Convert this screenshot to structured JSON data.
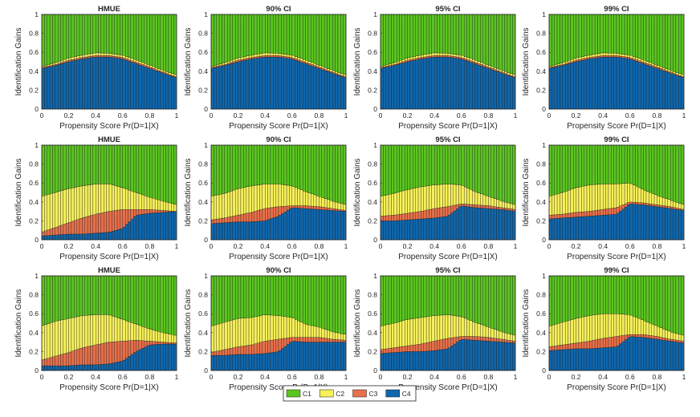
{
  "legend": {
    "position": "bottom-center",
    "items": [
      {
        "label": "C1",
        "color": "#5bc520"
      },
      {
        "label": "C2",
        "color": "#f6f05a"
      },
      {
        "label": "C3",
        "color": "#e8704b"
      },
      {
        "label": "C4",
        "color": "#0f67ad"
      }
    ]
  },
  "chart_data": [
    {
      "type": "area",
      "stacked": true,
      "title": "HMUE",
      "xlabel": "Propensity Score Pr(D=1|X)",
      "ylabel": "Identification Gains",
      "xlim": [
        0,
        1
      ],
      "ylim": [
        0,
        1
      ],
      "x": [
        0,
        0.1,
        0.2,
        0.3,
        0.4,
        0.5,
        0.6,
        0.7,
        0.8,
        0.9,
        1
      ],
      "series": [
        {
          "name": "C4",
          "values": [
            0.43,
            0.46,
            0.5,
            0.53,
            0.55,
            0.55,
            0.53,
            0.48,
            0.43,
            0.38,
            0.33
          ]
        },
        {
          "name": "C3",
          "values": [
            0.01,
            0.01,
            0.015,
            0.015,
            0.015,
            0.015,
            0.015,
            0.015,
            0.015,
            0.01,
            0.01
          ]
        },
        {
          "name": "C2",
          "values": [
            0.01,
            0.02,
            0.025,
            0.025,
            0.03,
            0.025,
            0.025,
            0.025,
            0.02,
            0.02,
            0.02
          ]
        },
        {
          "name": "C1",
          "values": [
            0.55,
            0.51,
            0.46,
            0.43,
            0.405,
            0.41,
            0.43,
            0.48,
            0.535,
            0.59,
            0.64
          ]
        }
      ]
    },
    {
      "type": "area",
      "stacked": true,
      "title": "90% CI",
      "xlabel": "Propensity Score Pr(D=1|X)",
      "ylabel": "Identification Gains",
      "xlim": [
        0,
        1
      ],
      "ylim": [
        0,
        1
      ],
      "x": [
        0,
        0.1,
        0.2,
        0.3,
        0.4,
        0.5,
        0.6,
        0.7,
        0.8,
        0.9,
        1
      ],
      "series": [
        {
          "name": "C4",
          "values": [
            0.43,
            0.46,
            0.5,
            0.53,
            0.55,
            0.55,
            0.53,
            0.48,
            0.43,
            0.38,
            0.33
          ]
        },
        {
          "name": "C3",
          "values": [
            0.01,
            0.01,
            0.015,
            0.015,
            0.015,
            0.015,
            0.015,
            0.015,
            0.015,
            0.01,
            0.01
          ]
        },
        {
          "name": "C2",
          "values": [
            0.01,
            0.02,
            0.025,
            0.025,
            0.03,
            0.025,
            0.025,
            0.025,
            0.02,
            0.02,
            0.02
          ]
        },
        {
          "name": "C1",
          "values": [
            0.55,
            0.51,
            0.46,
            0.43,
            0.405,
            0.41,
            0.43,
            0.48,
            0.535,
            0.59,
            0.64
          ]
        }
      ]
    },
    {
      "type": "area",
      "stacked": true,
      "title": "95% CI",
      "xlabel": "Propensity Score Pr(D=1|X)",
      "ylabel": "Identification Gains",
      "xlim": [
        0,
        1
      ],
      "ylim": [
        0,
        1
      ],
      "x": [
        0,
        0.1,
        0.2,
        0.3,
        0.4,
        0.5,
        0.6,
        0.7,
        0.8,
        0.9,
        1
      ],
      "series": [
        {
          "name": "C4",
          "values": [
            0.43,
            0.46,
            0.5,
            0.53,
            0.55,
            0.55,
            0.53,
            0.48,
            0.43,
            0.38,
            0.33
          ]
        },
        {
          "name": "C3",
          "values": [
            0.01,
            0.01,
            0.015,
            0.015,
            0.015,
            0.015,
            0.015,
            0.015,
            0.015,
            0.01,
            0.01
          ]
        },
        {
          "name": "C2",
          "values": [
            0.01,
            0.02,
            0.025,
            0.025,
            0.03,
            0.025,
            0.025,
            0.025,
            0.02,
            0.02,
            0.02
          ]
        },
        {
          "name": "C1",
          "values": [
            0.55,
            0.51,
            0.46,
            0.43,
            0.405,
            0.41,
            0.43,
            0.48,
            0.535,
            0.59,
            0.64
          ]
        }
      ]
    },
    {
      "type": "area",
      "stacked": true,
      "title": "99% CI",
      "xlabel": "Propensity Score Pr(D=1|X)",
      "ylabel": "Identification Gains",
      "xlim": [
        0,
        1
      ],
      "ylim": [
        0,
        1
      ],
      "x": [
        0,
        0.1,
        0.2,
        0.3,
        0.4,
        0.5,
        0.6,
        0.7,
        0.8,
        0.9,
        1
      ],
      "series": [
        {
          "name": "C4",
          "values": [
            0.43,
            0.46,
            0.5,
            0.53,
            0.55,
            0.55,
            0.53,
            0.48,
            0.43,
            0.38,
            0.33
          ]
        },
        {
          "name": "C3",
          "values": [
            0.01,
            0.01,
            0.015,
            0.015,
            0.015,
            0.015,
            0.015,
            0.015,
            0.015,
            0.01,
            0.01
          ]
        },
        {
          "name": "C2",
          "values": [
            0.01,
            0.02,
            0.025,
            0.025,
            0.03,
            0.025,
            0.025,
            0.025,
            0.02,
            0.02,
            0.02
          ]
        },
        {
          "name": "C1",
          "values": [
            0.55,
            0.51,
            0.46,
            0.43,
            0.405,
            0.41,
            0.43,
            0.48,
            0.535,
            0.59,
            0.64
          ]
        }
      ]
    },
    {
      "type": "area",
      "stacked": true,
      "title": "HMUE",
      "xlabel": "Propensity Score Pr(D=1|X)",
      "ylabel": "Identification Gains",
      "xlim": [
        0,
        1
      ],
      "ylim": [
        0,
        1
      ],
      "x": [
        0,
        0.1,
        0.2,
        0.3,
        0.4,
        0.5,
        0.6,
        0.7,
        0.8,
        0.9,
        1
      ],
      "series": [
        {
          "name": "C4",
          "values": [
            0.04,
            0.05,
            0.06,
            0.06,
            0.07,
            0.08,
            0.12,
            0.26,
            0.28,
            0.29,
            0.3
          ]
        },
        {
          "name": "C3",
          "values": [
            0.04,
            0.08,
            0.12,
            0.17,
            0.2,
            0.22,
            0.2,
            0.06,
            0.04,
            0.02,
            0.0
          ]
        },
        {
          "name": "C2",
          "values": [
            0.38,
            0.37,
            0.36,
            0.34,
            0.32,
            0.29,
            0.23,
            0.18,
            0.13,
            0.1,
            0.07
          ]
        },
        {
          "name": "C1",
          "values": [
            0.54,
            0.5,
            0.46,
            0.43,
            0.41,
            0.41,
            0.45,
            0.5,
            0.55,
            0.59,
            0.63
          ]
        }
      ]
    },
    {
      "type": "area",
      "stacked": true,
      "title": "90% CI",
      "xlabel": "Propensity Score Pr(D=1|X)",
      "ylabel": "Identification Gains",
      "xlim": [
        0,
        1
      ],
      "ylim": [
        0,
        1
      ],
      "x": [
        0,
        0.1,
        0.2,
        0.3,
        0.4,
        0.5,
        0.6,
        0.7,
        0.8,
        0.9,
        1
      ],
      "series": [
        {
          "name": "C4",
          "values": [
            0.17,
            0.18,
            0.19,
            0.19,
            0.2,
            0.25,
            0.34,
            0.33,
            0.32,
            0.31,
            0.3
          ]
        },
        {
          "name": "C3",
          "values": [
            0.04,
            0.05,
            0.07,
            0.1,
            0.13,
            0.1,
            0.02,
            0.03,
            0.03,
            0.02,
            0.01
          ]
        },
        {
          "name": "C2",
          "values": [
            0.25,
            0.26,
            0.28,
            0.28,
            0.26,
            0.24,
            0.21,
            0.15,
            0.11,
            0.08,
            0.06
          ]
        },
        {
          "name": "C1",
          "values": [
            0.54,
            0.51,
            0.46,
            0.43,
            0.41,
            0.41,
            0.43,
            0.49,
            0.54,
            0.59,
            0.63
          ]
        }
      ]
    },
    {
      "type": "area",
      "stacked": true,
      "title": "95% CI",
      "xlabel": "Propensity Score Pr(D=1|X)",
      "ylabel": "Identification Gains",
      "xlim": [
        0,
        1
      ],
      "ylim": [
        0,
        1
      ],
      "x": [
        0,
        0.1,
        0.2,
        0.3,
        0.4,
        0.5,
        0.6,
        0.7,
        0.8,
        0.9,
        1
      ],
      "series": [
        {
          "name": "C4",
          "values": [
            0.2,
            0.2,
            0.21,
            0.22,
            0.23,
            0.25,
            0.36,
            0.34,
            0.33,
            0.32,
            0.3
          ]
        },
        {
          "name": "C3",
          "values": [
            0.05,
            0.06,
            0.07,
            0.08,
            0.1,
            0.1,
            0.02,
            0.03,
            0.03,
            0.02,
            0.02
          ]
        },
        {
          "name": "C2",
          "values": [
            0.21,
            0.23,
            0.25,
            0.26,
            0.25,
            0.24,
            0.2,
            0.14,
            0.1,
            0.07,
            0.05
          ]
        },
        {
          "name": "C1",
          "values": [
            0.54,
            0.51,
            0.47,
            0.44,
            0.42,
            0.41,
            0.42,
            0.49,
            0.54,
            0.59,
            0.63
          ]
        }
      ]
    },
    {
      "type": "area",
      "stacked": true,
      "title": "99% CI",
      "xlabel": "Propensity Score Pr(D=1|X)",
      "ylabel": "Identification Gains",
      "xlim": [
        0,
        1
      ],
      "ylim": [
        0,
        1
      ],
      "x": [
        0,
        0.1,
        0.2,
        0.3,
        0.4,
        0.5,
        0.6,
        0.7,
        0.8,
        0.9,
        1
      ],
      "series": [
        {
          "name": "C4",
          "values": [
            0.22,
            0.23,
            0.24,
            0.25,
            0.26,
            0.27,
            0.38,
            0.37,
            0.35,
            0.33,
            0.31
          ]
        },
        {
          "name": "C3",
          "values": [
            0.04,
            0.04,
            0.05,
            0.05,
            0.06,
            0.07,
            0.02,
            0.02,
            0.02,
            0.02,
            0.01
          ]
        },
        {
          "name": "C2",
          "values": [
            0.2,
            0.23,
            0.26,
            0.28,
            0.27,
            0.25,
            0.2,
            0.14,
            0.1,
            0.07,
            0.05
          ]
        },
        {
          "name": "C1",
          "values": [
            0.54,
            0.5,
            0.45,
            0.42,
            0.41,
            0.41,
            0.4,
            0.47,
            0.53,
            0.58,
            0.63
          ]
        }
      ]
    },
    {
      "type": "area",
      "stacked": true,
      "title": "HMUE",
      "xlabel": "Propensity Score Pr(D=1|X)",
      "ylabel": "Identification Gains",
      "xlim": [
        0,
        1
      ],
      "ylim": [
        0,
        1
      ],
      "x": [
        0,
        0.1,
        0.2,
        0.3,
        0.4,
        0.5,
        0.6,
        0.7,
        0.8,
        0.9,
        1
      ],
      "series": [
        {
          "name": "C4",
          "values": [
            0.05,
            0.05,
            0.05,
            0.06,
            0.06,
            0.07,
            0.1,
            0.2,
            0.27,
            0.28,
            0.28
          ]
        },
        {
          "name": "C3",
          "values": [
            0.06,
            0.1,
            0.14,
            0.18,
            0.21,
            0.23,
            0.21,
            0.12,
            0.04,
            0.02,
            0.01
          ]
        },
        {
          "name": "C2",
          "values": [
            0.36,
            0.37,
            0.36,
            0.34,
            0.32,
            0.29,
            0.23,
            0.17,
            0.13,
            0.1,
            0.08
          ]
        },
        {
          "name": "C1",
          "values": [
            0.53,
            0.48,
            0.45,
            0.42,
            0.41,
            0.41,
            0.46,
            0.51,
            0.56,
            0.6,
            0.63
          ]
        }
      ]
    },
    {
      "type": "area",
      "stacked": true,
      "title": "90% CI",
      "xlabel": "Propensity Score Pr(D=1|X)",
      "ylabel": "Identification Gains",
      "xlim": [
        0,
        1
      ],
      "ylim": [
        0,
        1
      ],
      "x": [
        0,
        0.1,
        0.2,
        0.3,
        0.4,
        0.5,
        0.6,
        0.7,
        0.8,
        0.9,
        1
      ],
      "series": [
        {
          "name": "C4",
          "values": [
            0.16,
            0.16,
            0.17,
            0.17,
            0.18,
            0.2,
            0.31,
            0.3,
            0.3,
            0.3,
            0.3
          ]
        },
        {
          "name": "C3",
          "values": [
            0.03,
            0.06,
            0.08,
            0.1,
            0.13,
            0.13,
            0.04,
            0.05,
            0.05,
            0.03,
            0.02
          ]
        },
        {
          "name": "C2",
          "values": [
            0.28,
            0.29,
            0.3,
            0.29,
            0.28,
            0.25,
            0.21,
            0.14,
            0.11,
            0.08,
            0.06
          ]
        },
        {
          "name": "C1",
          "values": [
            0.53,
            0.49,
            0.45,
            0.44,
            0.41,
            0.42,
            0.44,
            0.51,
            0.54,
            0.59,
            0.62
          ]
        }
      ]
    },
    {
      "type": "area",
      "stacked": true,
      "title": "95% CI",
      "xlabel": "Propensity Score Pr(D=1|X)",
      "ylabel": "Identification Gains",
      "xlim": [
        0,
        1
      ],
      "ylim": [
        0,
        1
      ],
      "x": [
        0,
        0.1,
        0.2,
        0.3,
        0.4,
        0.5,
        0.6,
        0.7,
        0.8,
        0.9,
        1
      ],
      "series": [
        {
          "name": "C4",
          "values": [
            0.18,
            0.19,
            0.2,
            0.2,
            0.21,
            0.23,
            0.33,
            0.32,
            0.31,
            0.3,
            0.29
          ]
        },
        {
          "name": "C3",
          "values": [
            0.04,
            0.05,
            0.06,
            0.08,
            0.1,
            0.11,
            0.03,
            0.04,
            0.04,
            0.03,
            0.02
          ]
        },
        {
          "name": "C2",
          "values": [
            0.25,
            0.26,
            0.28,
            0.28,
            0.27,
            0.25,
            0.21,
            0.15,
            0.11,
            0.08,
            0.06
          ]
        },
        {
          "name": "C1",
          "values": [
            0.53,
            0.5,
            0.46,
            0.44,
            0.42,
            0.41,
            0.43,
            0.49,
            0.54,
            0.59,
            0.63
          ]
        }
      ]
    },
    {
      "type": "area",
      "stacked": true,
      "title": "99% CI",
      "xlabel": "Propensity Score Pr(D=1|X)",
      "ylabel": "Identification Gains",
      "xlim": [
        0,
        1
      ],
      "ylim": [
        0,
        1
      ],
      "x": [
        0,
        0.1,
        0.2,
        0.3,
        0.4,
        0.5,
        0.6,
        0.7,
        0.8,
        0.9,
        1
      ],
      "series": [
        {
          "name": "C4",
          "values": [
            0.21,
            0.22,
            0.23,
            0.23,
            0.24,
            0.25,
            0.36,
            0.35,
            0.33,
            0.31,
            0.29
          ]
        },
        {
          "name": "C3",
          "values": [
            0.04,
            0.05,
            0.06,
            0.08,
            0.1,
            0.11,
            0.02,
            0.03,
            0.03,
            0.02,
            0.02
          ]
        },
        {
          "name": "C2",
          "values": [
            0.22,
            0.24,
            0.26,
            0.27,
            0.26,
            0.24,
            0.21,
            0.15,
            0.11,
            0.08,
            0.06
          ]
        },
        {
          "name": "C1",
          "values": [
            0.53,
            0.49,
            0.45,
            0.42,
            0.4,
            0.4,
            0.41,
            0.47,
            0.53,
            0.59,
            0.63
          ]
        }
      ]
    }
  ],
  "axes_style": {
    "xticks": [
      0,
      0.2,
      0.4,
      0.6,
      0.8,
      1
    ],
    "xtick_labels": [
      "0",
      "0.2",
      "0.4",
      "0.6",
      "0.8",
      "1"
    ],
    "yticks": [
      0,
      0.2,
      0.4,
      0.6,
      0.8,
      1
    ],
    "ytick_labels": [
      "0",
      "0.2",
      "0.4",
      "0.6",
      "0.8",
      "1"
    ],
    "bar_count": 50,
    "grid": false
  }
}
